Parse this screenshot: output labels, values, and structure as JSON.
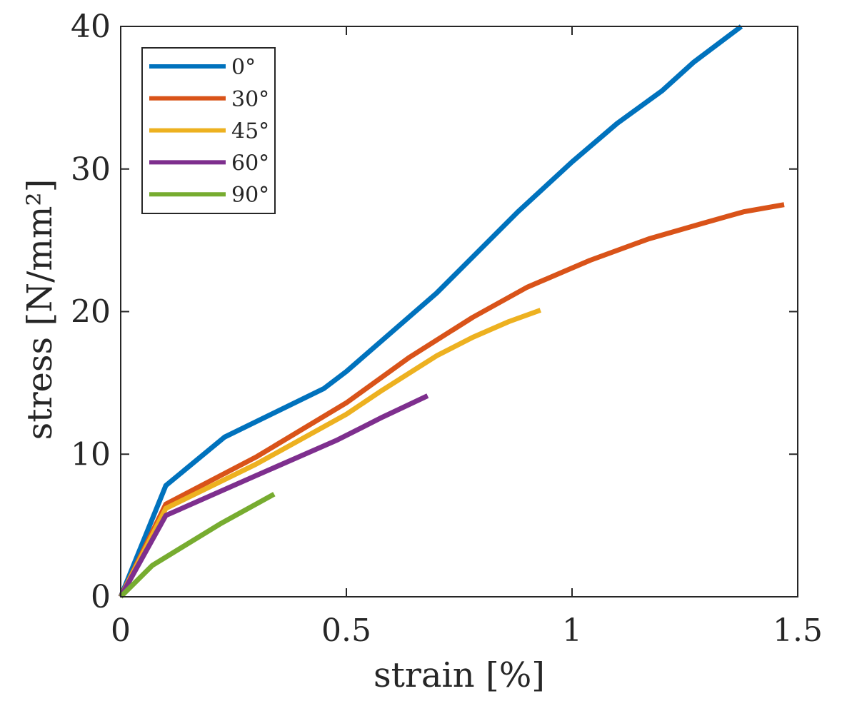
{
  "chart_data": {
    "type": "line",
    "title": "",
    "xlabel": "strain [%]",
    "ylabel": "stress [N/mm²]",
    "xlim": [
      0,
      1.5
    ],
    "ylim": [
      0,
      40
    ],
    "xticks": [
      0,
      0.5,
      1,
      1.5
    ],
    "xtick_labels": [
      "0",
      "0.5",
      "1",
      "1.5"
    ],
    "yticks": [
      0,
      10,
      20,
      30,
      40
    ],
    "ytick_labels": [
      "0",
      "10",
      "20",
      "30",
      "40"
    ],
    "grid": false,
    "box": true,
    "legend_position": "top-left",
    "series": [
      {
        "name": "0°",
        "color": "#0072BD",
        "x": [
          0,
          0.1,
          0.23,
          0.45,
          0.5,
          0.7,
          0.88,
          1.0,
          1.1,
          1.2,
          1.27,
          1.375
        ],
        "y": [
          0,
          7.8,
          11.2,
          14.6,
          15.8,
          21.3,
          27.0,
          30.5,
          33.2,
          35.5,
          37.5,
          40.0
        ]
      },
      {
        "name": "30°",
        "color": "#D95319",
        "x": [
          0,
          0.1,
          0.3,
          0.5,
          0.64,
          0.78,
          0.9,
          1.04,
          1.17,
          1.29,
          1.38,
          1.47
        ],
        "y": [
          0,
          6.5,
          9.8,
          13.6,
          16.8,
          19.6,
          21.7,
          23.6,
          25.1,
          26.2,
          27.0,
          27.5
        ]
      },
      {
        "name": "45°",
        "color": "#EDB120",
        "x": [
          0,
          0.1,
          0.3,
          0.5,
          0.58,
          0.7,
          0.78,
          0.86,
          0.93
        ],
        "y": [
          0,
          6.2,
          9.3,
          12.8,
          14.5,
          16.9,
          18.2,
          19.3,
          20.1
        ]
      },
      {
        "name": "60°",
        "color": "#7E2F8E",
        "x": [
          0,
          0.1,
          0.3,
          0.48,
          0.58,
          0.68
        ],
        "y": [
          0,
          5.7,
          8.5,
          11.0,
          12.6,
          14.1
        ]
      },
      {
        "name": "90°",
        "color": "#77AC30",
        "x": [
          0,
          0.07,
          0.22,
          0.34
        ],
        "y": [
          0,
          2.2,
          5.1,
          7.2
        ]
      }
    ]
  }
}
